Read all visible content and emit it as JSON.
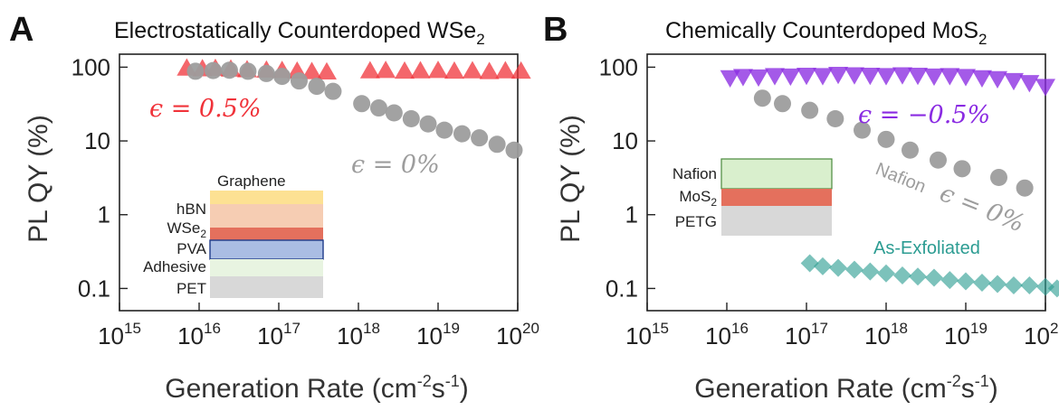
{
  "figure": {
    "xlabel_main": "Generation Rate (cm",
    "xlabel_exp1": "-2",
    "xlabel_mid": "s",
    "xlabel_exp2": "-1",
    "xlabel_end": ")",
    "ylabel": "PL QY (%)",
    "x_tick_base": "10",
    "x_tick_exponents": [
      "15",
      "16",
      "17",
      "18",
      "19",
      "20"
    ],
    "y_tick_labels": [
      "100",
      "10",
      "1",
      "0.1"
    ]
  },
  "colors": {
    "red": "#f0333a",
    "gray": "#9d9d9d",
    "purple": "#8a2be2",
    "teal": "#2c9c92",
    "graphene": "#fde193",
    "hbn": "#f6cdb3",
    "wse2": "#e4705d",
    "pva": "#aabde3",
    "adhesive": "#e8f4e1",
    "pet": "#d8d8d8",
    "nafion": "#d9efcd",
    "mos2": "#e4705d",
    "petg": "#d8d8d8"
  },
  "panels": {
    "a": {
      "letter": "A",
      "title_main": "Electrostatically Counterdoped WSe",
      "title_sub": "2",
      "ann_red": "ϵ = 0.5%",
      "ann_gray": "ϵ = 0%",
      "stack": {
        "graphene": "Graphene",
        "hbn": "hBN",
        "wse": "WSe",
        "wse_sub": "2",
        "pva": "PVA",
        "adhesive": "Adhesive",
        "pet": "PET"
      }
    },
    "b": {
      "letter": "B",
      "title_main": "Chemically Counterdoped MoS",
      "title_sub": "2",
      "ann_purple": "ϵ = −0.5%",
      "ann_gray_word": "Nafion",
      "ann_gray_eps": "ϵ = 0%",
      "ann_teal": "As-Exfoliated",
      "stack": {
        "nafion": "Nafion",
        "mos": "MoS",
        "mos_sub": "2",
        "petg": "PETG"
      }
    }
  },
  "chart_data": [
    {
      "type": "scatter",
      "panel": "A",
      "title": "Electrostatically Counterdoped WSe2",
      "xlabel": "Generation Rate (cm-2s-1)",
      "ylabel": "PL QY (%)",
      "xscale": "log",
      "yscale": "log",
      "xlim": [
        1000000000000000.0,
        1e+20
      ],
      "ylim": [
        0.05,
        150
      ],
      "series": [
        {
          "name": "ϵ = 0.5%",
          "marker": "triangle-up",
          "color": "#f0333a",
          "x": [
            7000000000000000.0,
            1.1e+16,
            1.6e+16,
            2.5e+16,
            4e+16,
            7e+16,
            1.1e+17,
            1.7e+17,
            2.6e+17,
            4e+17,
            1.4e+18,
            2.2e+18,
            3.8e+18,
            6e+18,
            1e+19,
            1.6e+19,
            2.7e+19,
            4.4e+19,
            7e+19,
            1.1e+20
          ],
          "y": [
            97,
            95,
            96,
            94,
            92,
            91,
            90,
            88,
            87,
            86,
            89,
            90,
            88,
            89,
            90,
            88,
            89,
            87,
            89,
            88
          ]
        },
        {
          "name": "ϵ = 0%",
          "marker": "circle",
          "color": "#9d9d9d",
          "x": [
            9000000000000000.0,
            1.5e+16,
            2.4e+16,
            4.1e+16,
            7e+16,
            1.1e+17,
            1.8e+17,
            3e+17,
            4.8e+17,
            1.1e+18,
            1.8e+18,
            2.8e+18,
            4.6e+18,
            7.5e+18,
            1.2e+19,
            2e+19,
            3.3e+19,
            5.5e+19,
            9e+19
          ],
          "y": [
            88,
            90,
            91,
            88,
            82,
            75,
            65,
            55,
            47,
            32,
            28,
            24,
            20,
            17,
            14,
            12.5,
            11,
            9,
            7.5
          ]
        }
      ]
    },
    {
      "type": "scatter",
      "panel": "B",
      "title": "Chemically Counterdoped MoS2",
      "xlabel": "Generation Rate (cm-2s-1)",
      "ylabel": "PL QY (%)",
      "xscale": "log",
      "yscale": "log",
      "xlim": [
        1000000000000000.0,
        1e+20
      ],
      "ylim": [
        0.05,
        150
      ],
      "series": [
        {
          "name": "ϵ = −0.5%",
          "marker": "triangle-down",
          "color": "#8a2be2",
          "x": [
            1.1e+16,
            1.6e+16,
            2.5e+16,
            4e+16,
            6.3e+16,
            1e+17,
            1.6e+17,
            2.5e+17,
            4e+17,
            6.3e+17,
            1e+18,
            1.6e+18,
            2.5e+18,
            4e+18,
            6.3e+18,
            1e+19,
            1.6e+19,
            2.5e+19,
            4e+19,
            6.3e+19,
            1e+20
          ],
          "y": [
            72,
            75,
            74,
            77,
            76,
            78,
            77,
            80,
            79,
            78,
            77,
            79,
            78,
            76,
            77,
            75,
            72,
            70,
            66,
            62,
            55
          ]
        },
        {
          "name": "Nafion ϵ = 0%",
          "marker": "circle",
          "color": "#9d9d9d",
          "x": [
            2.8e+16,
            5e+16,
            1.1e+17,
            2.3e+17,
            5e+17,
            1e+18,
            2e+18,
            4.5e+18,
            9e+18,
            2.6e+19,
            5.5e+19
          ],
          "y": [
            38,
            32,
            26,
            20,
            14,
            10.5,
            7.5,
            5.5,
            4.2,
            3.2,
            2.3
          ]
        },
        {
          "name": "As-Exfoliated",
          "marker": "diamond",
          "color": "#2c9c92",
          "x": [
            1.1e+17,
            1.6e+17,
            2.5e+17,
            4e+17,
            6.3e+17,
            1e+18,
            1.6e+18,
            2.5e+18,
            4e+18,
            6.3e+18,
            1e+19,
            1.6e+19,
            2.5e+19,
            4e+19,
            6.3e+19,
            1e+20,
            1.4e+20
          ],
          "y": [
            0.22,
            0.2,
            0.19,
            0.18,
            0.17,
            0.16,
            0.15,
            0.145,
            0.14,
            0.13,
            0.125,
            0.12,
            0.115,
            0.11,
            0.11,
            0.105,
            0.1
          ]
        }
      ]
    }
  ]
}
